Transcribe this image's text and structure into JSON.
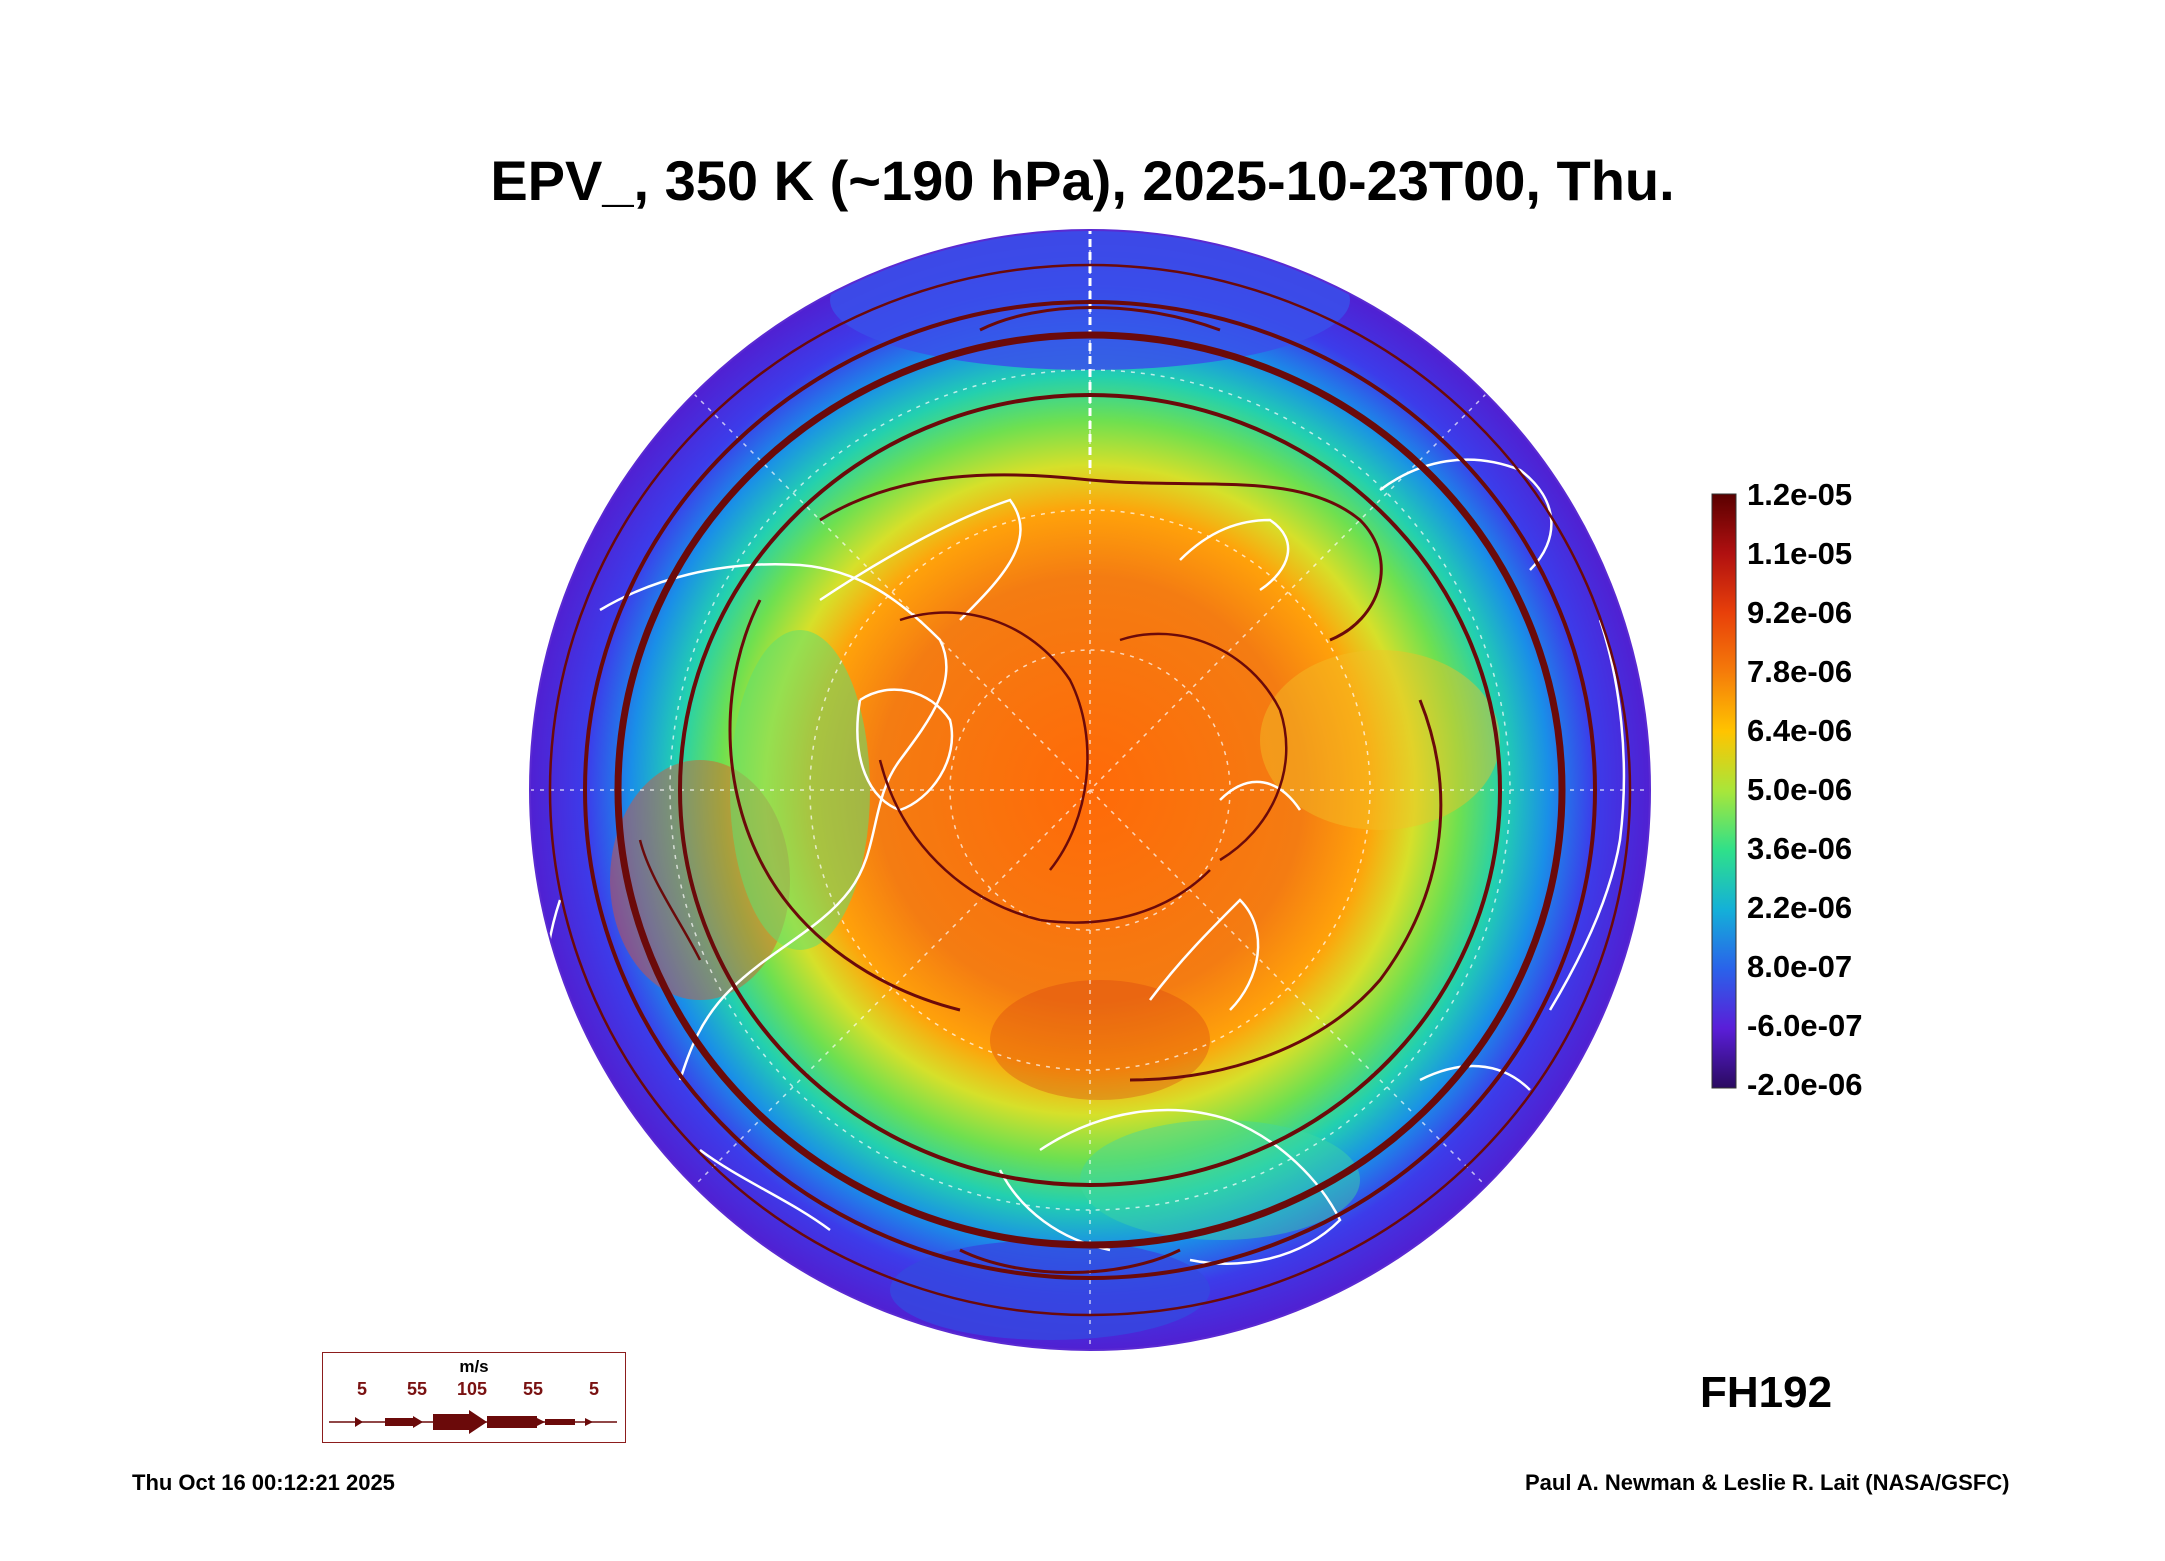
{
  "title": "EPV_, 350 K (~190 hPa), 2025-10-23T00, Thu.",
  "colorbar": {
    "labels": [
      "1.2e-05",
      "1.1e-05",
      "9.2e-06",
      "7.8e-06",
      "6.4e-06",
      "5.0e-06",
      "3.6e-06",
      "2.2e-06",
      "8.0e-07",
      "-6.0e-07",
      "-2.0e-06"
    ],
    "colors": [
      "#5a0000",
      "#b01010",
      "#e8400a",
      "#f57c0a",
      "#ffc400",
      "#a8e63a",
      "#2fe08a",
      "#14b0d8",
      "#2a62ea",
      "#5a1ed8",
      "#2a0a60"
    ]
  },
  "forecast_hour": "FH192",
  "wind_legend": {
    "unit": "m/s",
    "speeds": [
      "5",
      "55",
      "105",
      "55",
      "5"
    ]
  },
  "timestamp": "Thu Oct 16 00:12:21 2025",
  "credit": "Paul A. Newman & Leslie R. Lait (NASA/GSFC)",
  "colors": {
    "streamline": "#6b0a0a",
    "coastline": "#ffffff",
    "outer_ring": "#4a2ad8",
    "mid_ring": "#20c8e0",
    "green_ring": "#60e060",
    "core": "#f07810"
  }
}
